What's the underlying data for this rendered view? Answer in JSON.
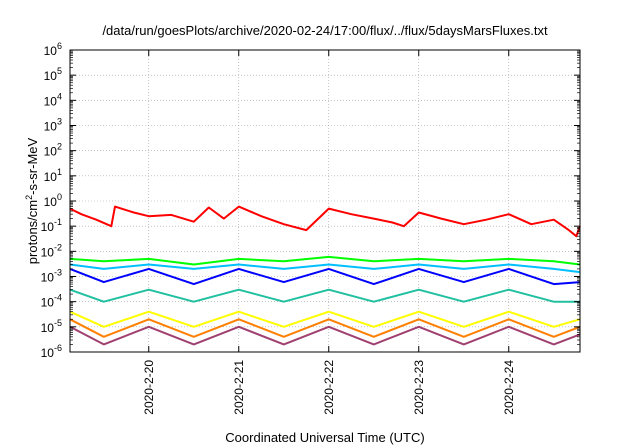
{
  "chart_data": {
    "type": "line",
    "title": "/data/run/goesPlots/archive/2020-02-24/17:00/flux/../flux/5daysMarsFluxes.txt",
    "xlabel": "Coordinated Universal Time (UTC)",
    "ylabel": "protons/cm²-s-sr-MeV",
    "ylabel_parts": {
      "pre": "protons/cm",
      "sup": "2",
      "post": "-s-sr-MeV"
    },
    "x_range": [
      "2020-02-19T03:00",
      "2020-02-24T19:00"
    ],
    "y_scale": "log",
    "ylim": [
      1e-06,
      1000000.0
    ],
    "grid": true,
    "legend": "none",
    "x_ticks": [
      "2020-2-20",
      "2020-2-21",
      "2020-2-22",
      "2020-2-23",
      "2020-2-24"
    ],
    "y_ticks": [
      {
        "base": "10",
        "exp": "-6"
      },
      {
        "base": "10",
        "exp": "-5"
      },
      {
        "base": "10",
        "exp": "-4"
      },
      {
        "base": "10",
        "exp": "-3"
      },
      {
        "base": "10",
        "exp": "-2"
      },
      {
        "base": "10",
        "exp": "-1"
      },
      {
        "base": "10",
        "exp": "0"
      },
      {
        "base": "10",
        "exp": "1"
      },
      {
        "base": "10",
        "exp": "2"
      },
      {
        "base": "10",
        "exp": "3"
      },
      {
        "base": "10",
        "exp": "4"
      },
      {
        "base": "10",
        "exp": "5"
      },
      {
        "base": "10",
        "exp": "6"
      }
    ],
    "series": [
      {
        "color": "#ff0000",
        "x": [
          "2020-02-19T03:00",
          "2020-02-19T06:00",
          "2020-02-19T10:00",
          "2020-02-19T14:00",
          "2020-02-19T15:00",
          "2020-02-19T20:00",
          "2020-02-20T00:00",
          "2020-02-20T06:00",
          "2020-02-20T12:00",
          "2020-02-20T16:00",
          "2020-02-20T20:00",
          "2020-02-21T00:00",
          "2020-02-21T06:00",
          "2020-02-21T12:00",
          "2020-02-21T18:00",
          "2020-02-22T00:00",
          "2020-02-22T06:00",
          "2020-02-22T12:00",
          "2020-02-22T17:00",
          "2020-02-22T20:00",
          "2020-02-23T00:00",
          "2020-02-23T06:00",
          "2020-02-23T12:00",
          "2020-02-23T18:00",
          "2020-02-24T00:00",
          "2020-02-24T06:00",
          "2020-02-24T12:00",
          "2020-02-24T16:00",
          "2020-02-24T18:00",
          "2020-02-24T19:00"
        ],
        "y": [
          0.5,
          0.3,
          0.18,
          0.1,
          0.6,
          0.35,
          0.25,
          0.28,
          0.15,
          0.55,
          0.2,
          0.6,
          0.25,
          0.12,
          0.07,
          0.5,
          0.3,
          0.2,
          0.14,
          0.1,
          0.35,
          0.2,
          0.12,
          0.18,
          0.3,
          0.12,
          0.18,
          0.07,
          0.04,
          0.1
        ]
      },
      {
        "color": "#00ff00",
        "x": [
          "2020-02-19T03:00",
          "2020-02-19T12:00",
          "2020-02-20T00:00",
          "2020-02-20T12:00",
          "2020-02-21T00:00",
          "2020-02-21T12:00",
          "2020-02-22T00:00",
          "2020-02-22T12:00",
          "2020-02-23T00:00",
          "2020-02-23T12:00",
          "2020-02-24T00:00",
          "2020-02-24T12:00",
          "2020-02-24T19:00"
        ],
        "y": [
          0.005,
          0.004,
          0.005,
          0.003,
          0.005,
          0.004,
          0.006,
          0.004,
          0.005,
          0.004,
          0.005,
          0.004,
          0.003
        ]
      },
      {
        "color": "#00c0ff",
        "x": [
          "2020-02-19T03:00",
          "2020-02-19T12:00",
          "2020-02-20T00:00",
          "2020-02-20T12:00",
          "2020-02-21T00:00",
          "2020-02-21T12:00",
          "2020-02-22T00:00",
          "2020-02-22T12:00",
          "2020-02-23T00:00",
          "2020-02-23T12:00",
          "2020-02-24T00:00",
          "2020-02-24T12:00",
          "2020-02-24T19:00"
        ],
        "y": [
          0.003,
          0.002,
          0.003,
          0.002,
          0.003,
          0.002,
          0.003,
          0.002,
          0.003,
          0.002,
          0.003,
          0.002,
          0.0015
        ]
      },
      {
        "color": "#0000ff",
        "x": [
          "2020-02-19T03:00",
          "2020-02-19T12:00",
          "2020-02-20T00:00",
          "2020-02-20T12:00",
          "2020-02-21T00:00",
          "2020-02-21T12:00",
          "2020-02-22T00:00",
          "2020-02-22T12:00",
          "2020-02-23T00:00",
          "2020-02-23T12:00",
          "2020-02-24T00:00",
          "2020-02-24T12:00",
          "2020-02-24T19:00"
        ],
        "y": [
          0.002,
          0.0006,
          0.002,
          0.0005,
          0.002,
          0.0006,
          0.002,
          0.0005,
          0.002,
          0.0006,
          0.002,
          0.0005,
          0.0006
        ]
      },
      {
        "color": "#20c0a0",
        "x": [
          "2020-02-19T03:00",
          "2020-02-19T12:00",
          "2020-02-20T00:00",
          "2020-02-20T12:00",
          "2020-02-21T00:00",
          "2020-02-21T12:00",
          "2020-02-22T00:00",
          "2020-02-22T12:00",
          "2020-02-23T00:00",
          "2020-02-23T12:00",
          "2020-02-24T00:00",
          "2020-02-24T12:00",
          "2020-02-24T19:00"
        ],
        "y": [
          0.0003,
          0.0001,
          0.0003,
          0.0001,
          0.0003,
          0.0001,
          0.0003,
          0.0001,
          0.0003,
          0.0001,
          0.0003,
          0.0001,
          0.0001
        ]
      },
      {
        "color": "#ffff00",
        "x": [
          "2020-02-19T03:00",
          "2020-02-19T12:00",
          "2020-02-20T00:00",
          "2020-02-20T12:00",
          "2020-02-21T00:00",
          "2020-02-21T12:00",
          "2020-02-22T00:00",
          "2020-02-22T12:00",
          "2020-02-23T00:00",
          "2020-02-23T12:00",
          "2020-02-24T00:00",
          "2020-02-24T12:00",
          "2020-02-24T19:00"
        ],
        "y": [
          4e-05,
          1e-05,
          4e-05,
          1e-05,
          4e-05,
          1e-05,
          4e-05,
          1e-05,
          4e-05,
          1e-05,
          4e-05,
          1e-05,
          2e-05
        ]
      },
      {
        "color": "#ff8000",
        "x": [
          "2020-02-19T03:00",
          "2020-02-19T12:00",
          "2020-02-20T00:00",
          "2020-02-20T12:00",
          "2020-02-21T00:00",
          "2020-02-21T12:00",
          "2020-02-22T00:00",
          "2020-02-22T12:00",
          "2020-02-23T00:00",
          "2020-02-23T12:00",
          "2020-02-24T00:00",
          "2020-02-24T12:00",
          "2020-02-24T19:00"
        ],
        "y": [
          2e-05,
          4e-06,
          2e-05,
          4e-06,
          2e-05,
          4e-06,
          2e-05,
          4e-06,
          2e-05,
          4e-06,
          2e-05,
          4e-06,
          1e-05
        ]
      },
      {
        "color": "#a04070",
        "x": [
          "2020-02-19T03:00",
          "2020-02-19T12:00",
          "2020-02-20T00:00",
          "2020-02-20T12:00",
          "2020-02-21T00:00",
          "2020-02-21T12:00",
          "2020-02-22T00:00",
          "2020-02-22T12:00",
          "2020-02-23T00:00",
          "2020-02-23T12:00",
          "2020-02-24T00:00",
          "2020-02-24T12:00",
          "2020-02-24T19:00"
        ],
        "y": [
          1e-05,
          2e-06,
          1e-05,
          2e-06,
          1e-05,
          2e-06,
          1e-05,
          2e-06,
          1e-05,
          2e-06,
          1e-05,
          2e-06,
          5e-06
        ]
      }
    ]
  }
}
